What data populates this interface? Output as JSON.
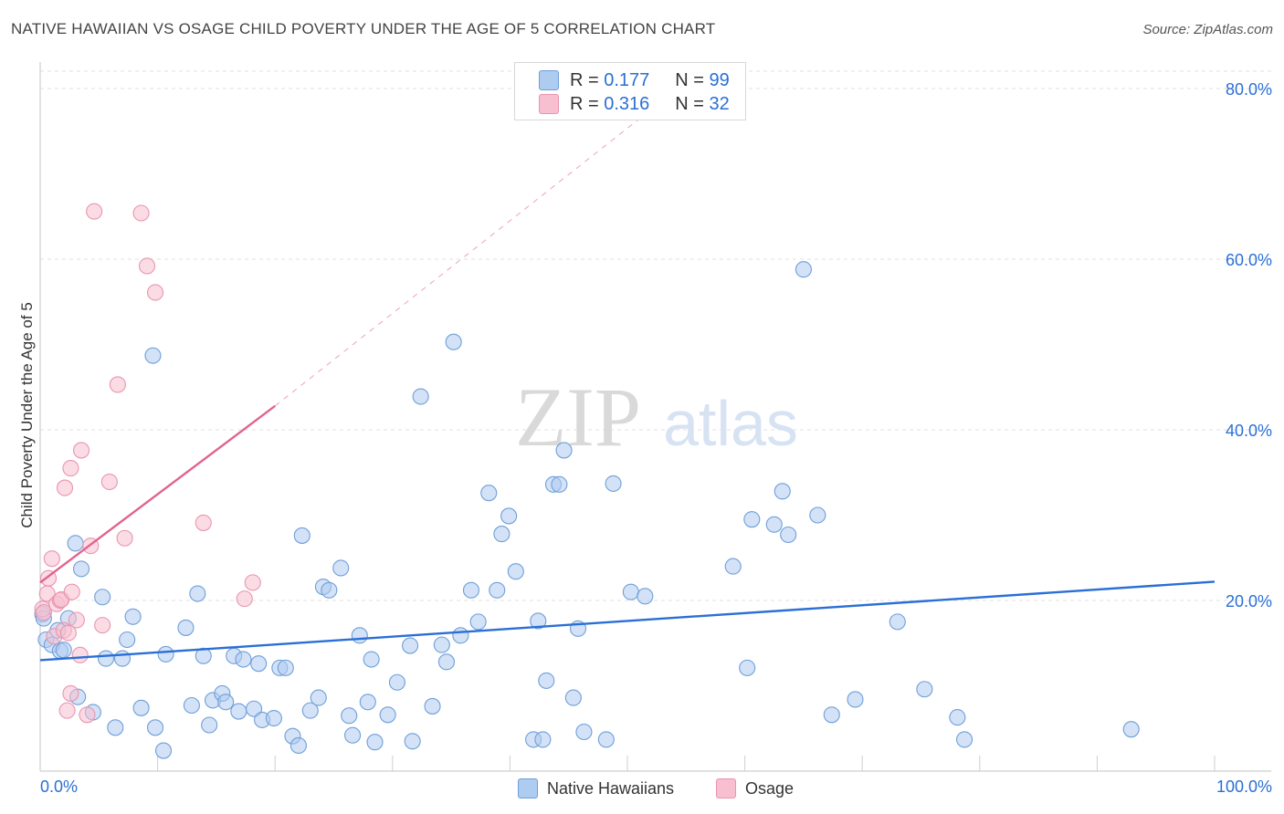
{
  "title": "NATIVE HAWAIIAN VS OSAGE CHILD POVERTY UNDER THE AGE OF 5 CORRELATION CHART",
  "source": "Source: ZipAtlas.com",
  "watermark": {
    "zip": "ZIP",
    "atlas": "atlas"
  },
  "legend": {
    "r_label": "R =",
    "n_label": "N =",
    "series": [
      {
        "name": "Native Hawaiians",
        "r": "0.177",
        "n": "99"
      },
      {
        "name": "Osage",
        "r": "0.316",
        "n": "32"
      }
    ]
  },
  "colors": {
    "blue_fill": "#aecbf0",
    "blue_stroke": "#6f9fd8",
    "blue_line": "#2a6fd6",
    "pink_fill": "#f7bfd0",
    "pink_stroke": "#e895b0",
    "pink_line": "#e0648f",
    "tick_text": "#2a6fd6"
  },
  "chart_data": {
    "type": "scatter",
    "title": "NATIVE HAWAIIAN VS OSAGE CHILD POVERTY UNDER THE AGE OF 5 CORRELATION CHART",
    "xlabel": "",
    "ylabel": "Child Poverty Under the Age of 5",
    "xlim": [
      0,
      100
    ],
    "ylim": [
      0,
      80
    ],
    "x_tick_labels": [
      "0.0%",
      "100.0%"
    ],
    "y_ticks": [
      20,
      40,
      60,
      80
    ],
    "y_tick_labels": [
      "20.0%",
      "40.0%",
      "60.0%",
      "80.0%"
    ],
    "grid": true,
    "series": [
      {
        "name": "Native Hawaiians",
        "trend": {
          "x": [
            0,
            100
          ],
          "y": [
            13.0,
            22.2
          ],
          "dashed_extension": false
        },
        "points": [
          [
            0.2,
            18.4
          ],
          [
            0.3,
            17.9
          ],
          [
            0.5,
            15.4
          ],
          [
            1.0,
            14.8
          ],
          [
            1.5,
            16.5
          ],
          [
            1.7,
            14.1
          ],
          [
            2.0,
            14.2
          ],
          [
            2.4,
            17.9
          ],
          [
            3.0,
            26.7
          ],
          [
            3.2,
            8.7
          ],
          [
            3.5,
            23.7
          ],
          [
            4.5,
            6.9
          ],
          [
            5.3,
            20.4
          ],
          [
            5.6,
            13.2
          ],
          [
            6.4,
            5.1
          ],
          [
            7.0,
            13.2
          ],
          [
            7.4,
            15.4
          ],
          [
            7.9,
            18.1
          ],
          [
            8.6,
            7.4
          ],
          [
            9.6,
            48.7
          ],
          [
            9.8,
            5.1
          ],
          [
            10.5,
            2.4
          ],
          [
            10.7,
            13.7
          ],
          [
            12.4,
            16.8
          ],
          [
            12.9,
            7.7
          ],
          [
            13.4,
            20.8
          ],
          [
            13.9,
            13.5
          ],
          [
            14.4,
            5.4
          ],
          [
            14.7,
            8.3
          ],
          [
            15.5,
            9.1
          ],
          [
            15.8,
            8.1
          ],
          [
            16.5,
            13.5
          ],
          [
            16.9,
            7.0
          ],
          [
            17.3,
            13.1
          ],
          [
            18.2,
            7.3
          ],
          [
            18.6,
            12.6
          ],
          [
            18.9,
            6.0
          ],
          [
            19.9,
            6.2
          ],
          [
            20.4,
            12.1
          ],
          [
            20.9,
            12.1
          ],
          [
            21.5,
            4.1
          ],
          [
            22.0,
            3.0
          ],
          [
            22.3,
            27.6
          ],
          [
            23.0,
            7.1
          ],
          [
            23.7,
            8.6
          ],
          [
            24.1,
            21.6
          ],
          [
            24.6,
            21.2
          ],
          [
            25.6,
            23.8
          ],
          [
            26.3,
            6.5
          ],
          [
            26.6,
            4.2
          ],
          [
            27.2,
            15.9
          ],
          [
            27.9,
            8.1
          ],
          [
            28.2,
            13.1
          ],
          [
            28.5,
            3.4
          ],
          [
            29.6,
            6.6
          ],
          [
            30.4,
            10.4
          ],
          [
            31.5,
            14.7
          ],
          [
            31.7,
            3.5
          ],
          [
            32.4,
            43.9
          ],
          [
            33.4,
            7.6
          ],
          [
            34.2,
            14.8
          ],
          [
            34.6,
            12.8
          ],
          [
            35.2,
            50.3
          ],
          [
            35.8,
            15.9
          ],
          [
            36.7,
            21.2
          ],
          [
            37.3,
            17.5
          ],
          [
            38.2,
            32.6
          ],
          [
            38.9,
            21.2
          ],
          [
            39.3,
            27.8
          ],
          [
            39.9,
            29.9
          ],
          [
            40.5,
            23.4
          ],
          [
            42.0,
            3.7
          ],
          [
            42.4,
            17.6
          ],
          [
            42.8,
            3.7
          ],
          [
            43.1,
            10.6
          ],
          [
            43.7,
            33.6
          ],
          [
            44.2,
            33.6
          ],
          [
            44.6,
            37.6
          ],
          [
            45.4,
            8.6
          ],
          [
            45.8,
            16.7
          ],
          [
            46.3,
            4.6
          ],
          [
            48.2,
            3.7
          ],
          [
            48.8,
            33.7
          ],
          [
            50.3,
            21.0
          ],
          [
            51.5,
            20.5
          ],
          [
            59.0,
            24.0
          ],
          [
            60.2,
            12.1
          ],
          [
            60.6,
            29.5
          ],
          [
            62.5,
            28.9
          ],
          [
            63.2,
            32.8
          ],
          [
            63.7,
            27.7
          ],
          [
            65.0,
            58.8
          ],
          [
            66.2,
            30.0
          ],
          [
            67.4,
            6.6
          ],
          [
            69.4,
            8.4
          ],
          [
            73.0,
            17.5
          ],
          [
            75.3,
            9.6
          ],
          [
            78.1,
            6.3
          ],
          [
            78.7,
            3.7
          ],
          [
            92.9,
            4.9
          ]
        ]
      },
      {
        "name": "Osage",
        "trend": {
          "x": [
            0,
            20
          ],
          "y": [
            22.1,
            42.8
          ],
          "dashed_extension": true,
          "dashed_to": [
            53,
            78.6
          ]
        },
        "points": [
          [
            0.2,
            19.0
          ],
          [
            0.3,
            18.6
          ],
          [
            0.6,
            20.8
          ],
          [
            0.7,
            22.6
          ],
          [
            1.0,
            24.9
          ],
          [
            1.2,
            15.8
          ],
          [
            1.4,
            19.6
          ],
          [
            1.7,
            20.0
          ],
          [
            1.8,
            20.1
          ],
          [
            2.0,
            16.5
          ],
          [
            2.1,
            33.2
          ],
          [
            2.3,
            7.1
          ],
          [
            2.4,
            16.2
          ],
          [
            2.6,
            35.5
          ],
          [
            2.7,
            21.0
          ],
          [
            3.1,
            17.7
          ],
          [
            3.4,
            13.6
          ],
          [
            3.5,
            37.6
          ],
          [
            4.0,
            6.6
          ],
          [
            4.3,
            26.4
          ],
          [
            5.3,
            17.1
          ],
          [
            5.9,
            33.9
          ],
          [
            6.6,
            45.3
          ],
          [
            7.2,
            27.3
          ],
          [
            8.6,
            65.4
          ],
          [
            9.1,
            59.2
          ],
          [
            9.8,
            56.1
          ],
          [
            4.6,
            65.6
          ],
          [
            2.6,
            9.1
          ],
          [
            13.9,
            29.1
          ],
          [
            17.4,
            20.2
          ],
          [
            18.1,
            22.1
          ]
        ]
      }
    ]
  },
  "bottom_legend": [
    "Native Hawaiians",
    "Osage"
  ]
}
